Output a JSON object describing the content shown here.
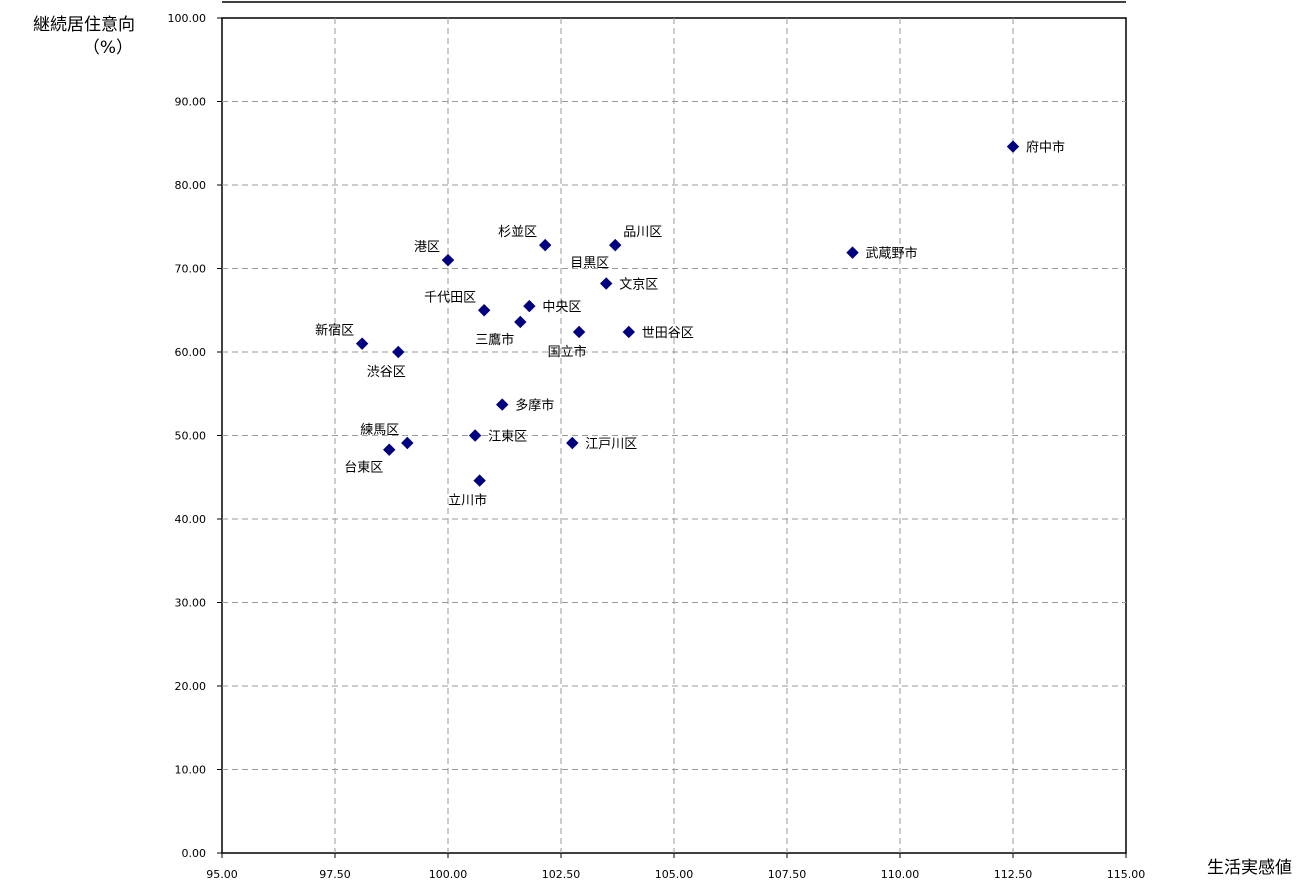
{
  "chart_data": {
    "type": "scatter",
    "title": "",
    "xlabel": "生活実感値",
    "ylabel_line1": "継続居住意向",
    "ylabel_line2": "（%）",
    "xlim": [
      95,
      115
    ],
    "ylim": [
      0,
      100
    ],
    "x_ticks": [
      "95.00",
      "97.50",
      "100.00",
      "102.50",
      "105.00",
      "107.50",
      "110.00",
      "112.50",
      "115.00"
    ],
    "y_ticks": [
      "0.00",
      "10.00",
      "20.00",
      "30.00",
      "40.00",
      "50.00",
      "60.00",
      "70.00",
      "80.00",
      "90.00",
      "100.00"
    ],
    "grid": true,
    "marker": "diamond",
    "marker_color": "#000080",
    "points": [
      {
        "label": "府中市",
        "x": 112.5,
        "y": 84.6,
        "pos": "right"
      },
      {
        "label": "武蔵野市",
        "x": 108.95,
        "y": 71.9,
        "pos": "right"
      },
      {
        "label": "品川区",
        "x": 103.7,
        "y": 72.8,
        "pos": "upright"
      },
      {
        "label": "目黒区",
        "x": 103.7,
        "y": 72.8,
        "pos": "belowleft"
      },
      {
        "label": "杉並区",
        "x": 102.15,
        "y": 72.8,
        "pos": "upleft"
      },
      {
        "label": "港区",
        "x": 100.0,
        "y": 71.0,
        "pos": "upleft"
      },
      {
        "label": "文京区",
        "x": 103.5,
        "y": 68.2,
        "pos": "right"
      },
      {
        "label": "千代田区",
        "x": 100.8,
        "y": 65.0,
        "pos": "upleft"
      },
      {
        "label": "中央区",
        "x": 101.8,
        "y": 65.5,
        "pos": "right"
      },
      {
        "label": "三鷹市",
        "x": 101.6,
        "y": 63.6,
        "pos": "belowleft"
      },
      {
        "label": "国立市",
        "x": 102.9,
        "y": 62.4,
        "pos": "below"
      },
      {
        "label": "世田谷区",
        "x": 104.0,
        "y": 62.4,
        "pos": "right"
      },
      {
        "label": "新宿区",
        "x": 98.1,
        "y": 61.0,
        "pos": "upleft"
      },
      {
        "label": "渋谷区",
        "x": 98.9,
        "y": 60.0,
        "pos": "below"
      },
      {
        "label": "多摩市",
        "x": 101.2,
        "y": 53.7,
        "pos": "right"
      },
      {
        "label": "江東区",
        "x": 100.6,
        "y": 50.0,
        "pos": "right"
      },
      {
        "label": "江戸川区",
        "x": 102.75,
        "y": 49.1,
        "pos": "right"
      },
      {
        "label": "練馬区",
        "x": 99.1,
        "y": 49.1,
        "pos": "upleft"
      },
      {
        "label": "台東区",
        "x": 98.7,
        "y": 48.3,
        "pos": "belowleft"
      },
      {
        "label": "立川市",
        "x": 100.7,
        "y": 44.6,
        "pos": "below"
      }
    ]
  }
}
